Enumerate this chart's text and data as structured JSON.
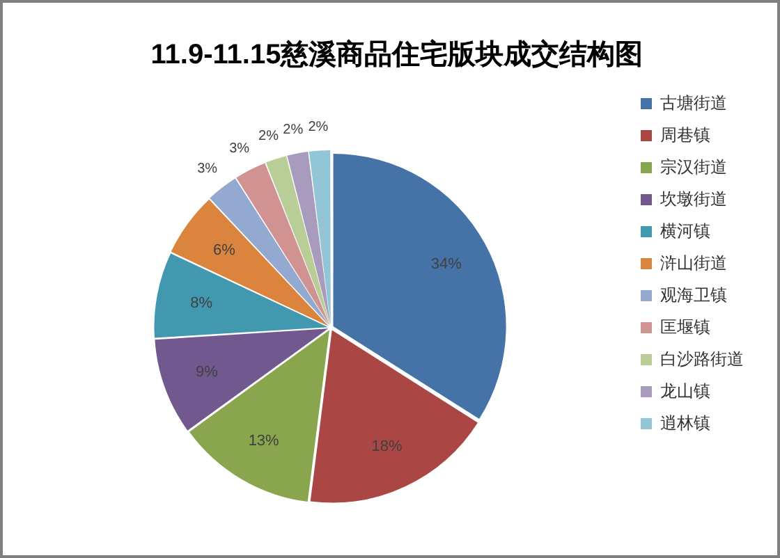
{
  "chart_data": {
    "type": "pie",
    "title": "11.9-11.15慈溪商品住宅版块成交结构图",
    "categories": [
      "古塘街道",
      "周巷镇",
      "宗汉街道",
      "坎墩街道",
      "横河镇",
      "浒山街道",
      "观海卫镇",
      "匡堰镇",
      "白沙路街道",
      "龙山镇",
      "逍林镇"
    ],
    "values": [
      34,
      18,
      13,
      9,
      8,
      6,
      3,
      3,
      2,
      2,
      2
    ],
    "value_labels": [
      "34%",
      "18%",
      "13%",
      "9%",
      "8%",
      "6%",
      "3%",
      "3%",
      "2%",
      "2%",
      "2%"
    ],
    "colors": [
      "#4572a7",
      "#aa4643",
      "#89a54e",
      "#71588f",
      "#4198af",
      "#db843d",
      "#93a9cf",
      "#d19392",
      "#b9cd96",
      "#a99bbd",
      "#92c5d6"
    ],
    "legend": "right"
  }
}
